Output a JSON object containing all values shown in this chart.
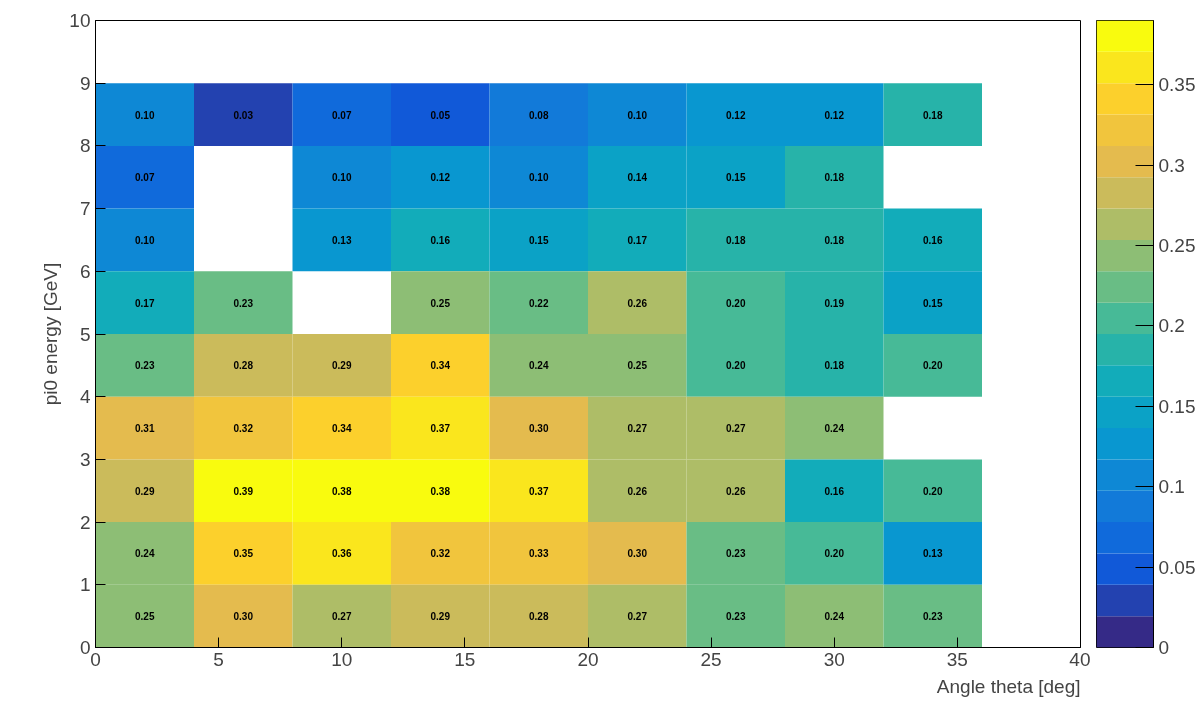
{
  "chart_data": {
    "type": "heatmap",
    "xlabel": "Angle theta [deg]",
    "ylabel": "pi0 energy [GeV]",
    "x": [
      2,
      6,
      10,
      14,
      18,
      22,
      26,
      30,
      34
    ],
    "y": [
      8.5,
      7.5,
      6.5,
      5.5,
      4.5,
      3.5,
      2.5,
      1.5,
      0.5
    ],
    "xlim": [
      0,
      40
    ],
    "xticks": [
      0,
      5,
      10,
      15,
      20,
      25,
      30,
      35,
      40
    ],
    "ylim": [
      0,
      10
    ],
    "yticks": [
      0,
      1,
      2,
      3,
      4,
      5,
      6,
      7,
      8,
      9,
      10
    ],
    "clim": [
      0,
      0.39
    ],
    "cticks": [
      0,
      0.05,
      0.1,
      0.15,
      0.2,
      0.25,
      0.3,
      0.35
    ],
    "cells": [
      [
        0.1,
        0.03,
        0.07,
        0.05,
        0.08,
        0.1,
        0.12,
        0.12,
        0.18
      ],
      [
        0.07,
        null,
        0.1,
        0.12,
        0.1,
        0.14,
        0.15,
        0.18,
        null
      ],
      [
        0.1,
        null,
        0.13,
        0.16,
        0.15,
        0.17,
        0.18,
        0.18,
        0.16
      ],
      [
        0.17,
        0.23,
        null,
        0.25,
        0.22,
        0.26,
        0.2,
        0.19,
        0.15
      ],
      [
        0.23,
        0.28,
        0.29,
        0.34,
        0.24,
        0.25,
        0.2,
        0.18,
        0.2
      ],
      [
        0.31,
        0.32,
        0.34,
        0.37,
        0.3,
        0.27,
        0.27,
        0.24,
        null
      ],
      [
        0.29,
        0.39,
        0.38,
        0.38,
        0.37,
        0.26,
        0.26,
        0.16,
        0.2
      ],
      [
        0.24,
        0.35,
        0.36,
        0.32,
        0.33,
        0.3,
        0.23,
        0.2,
        0.13
      ],
      [
        0.25,
        0.3,
        0.27,
        0.29,
        0.28,
        0.27,
        0.23,
        0.24,
        0.23
      ]
    ],
    "cell_labels": [
      [
        "0.10",
        "0.03",
        "0.07",
        "0.05",
        "0.08",
        "0.10",
        "0.12",
        "0.12",
        "0.18"
      ],
      [
        "0.07",
        null,
        "0.10",
        "0.12",
        "0.10",
        "0.14",
        "0.15",
        "0.18",
        null
      ],
      [
        "0.10",
        null,
        "0.13",
        "0.16",
        "0.15",
        "0.17",
        "0.18",
        "0.18",
        "0.16"
      ],
      [
        "0.17",
        "0.23",
        null,
        "0.25",
        "0.22",
        "0.26",
        "0.20",
        "0.19",
        "0.15"
      ],
      [
        "0.23",
        "0.28",
        "0.29",
        "0.34",
        "0.24",
        "0.25",
        "0.20",
        "0.18",
        "0.20"
      ],
      [
        "0.31",
        "0.32",
        "0.34",
        "0.37",
        "0.30",
        "0.27",
        "0.27",
        "0.24",
        null
      ],
      [
        "0.29",
        "0.39",
        "0.38",
        "0.38",
        "0.37",
        "0.26",
        "0.26",
        "0.16",
        "0.20"
      ],
      [
        "0.24",
        "0.35",
        "0.36",
        "0.32",
        "0.33",
        "0.30",
        "0.23",
        "0.20",
        "0.13"
      ],
      [
        "0.25",
        "0.30",
        "0.27",
        "0.29",
        "0.28",
        "0.27",
        "0.23",
        "0.24",
        "0.23"
      ]
    ]
  }
}
